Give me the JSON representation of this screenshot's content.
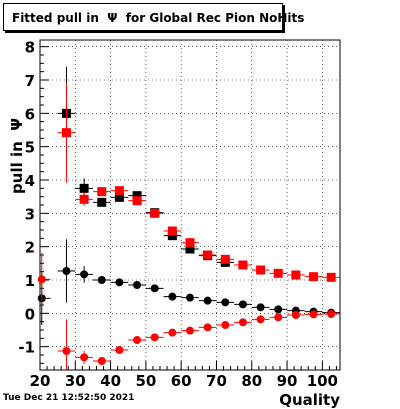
{
  "title": "Fitted pull in  Ψ  for Global Rec Pion NoHits",
  "timestamp": "Tue Dec 21 12:52:50 2021",
  "chart_data": {
    "type": "scatter",
    "title": "Fitted pull in  Ψ  for Global Rec Pion NoHits",
    "xlabel": "Quality",
    "ylabel": "pull in  Ψ",
    "xlim": [
      20,
      105
    ],
    "ylim": [
      -1.7,
      8.2
    ],
    "xticks": [
      20,
      30,
      40,
      50,
      60,
      70,
      80,
      90,
      100
    ],
    "yticks": [
      -1,
      0,
      1,
      2,
      3,
      4,
      5,
      6,
      7,
      8
    ],
    "grid": true,
    "series": [
      {
        "marker": "square",
        "color": "#000000",
        "points": [
          {
            "x": 27.5,
            "y": 6.0,
            "err": 1.4
          },
          {
            "x": 32.5,
            "y": 3.75,
            "err": 0.3
          },
          {
            "x": 37.5,
            "y": 3.33,
            "err": 0.12
          },
          {
            "x": 42.5,
            "y": 3.48,
            "err": 0.1
          },
          {
            "x": 47.5,
            "y": 3.53,
            "err": 0.1
          },
          {
            "x": 52.5,
            "y": 3.02,
            "err": 0.08
          },
          {
            "x": 57.5,
            "y": 2.33,
            "err": 0.06
          },
          {
            "x": 62.5,
            "y": 1.93,
            "err": 0.05
          },
          {
            "x": 67.5,
            "y": 1.73,
            "err": 0.05
          },
          {
            "x": 72.5,
            "y": 1.53,
            "err": 0.05
          },
          {
            "x": 77.5,
            "y": 1.45,
            "err": 0.05
          }
        ]
      },
      {
        "marker": "square",
        "color": "#ff0000",
        "points": [
          {
            "x": 27.5,
            "y": 5.42,
            "err": 1.5
          },
          {
            "x": 32.5,
            "y": 3.42,
            "err": 0.2
          },
          {
            "x": 37.5,
            "y": 3.65,
            "err": 0.12
          },
          {
            "x": 42.5,
            "y": 3.68,
            "err": 0.1
          },
          {
            "x": 47.5,
            "y": 3.38,
            "err": 0.1
          },
          {
            "x": 52.5,
            "y": 3.0,
            "err": 0.08
          },
          {
            "x": 57.5,
            "y": 2.47,
            "err": 0.06
          },
          {
            "x": 62.5,
            "y": 2.12,
            "err": 0.05
          },
          {
            "x": 67.5,
            "y": 1.75,
            "err": 0.05
          },
          {
            "x": 72.5,
            "y": 1.62,
            "err": 0.05
          },
          {
            "x": 77.5,
            "y": 1.45,
            "err": 0.05
          },
          {
            "x": 82.5,
            "y": 1.3,
            "err": 0.05
          },
          {
            "x": 87.5,
            "y": 1.2,
            "err": 0.05
          },
          {
            "x": 92.5,
            "y": 1.15,
            "err": 0.05
          },
          {
            "x": 97.5,
            "y": 1.1,
            "err": 0.05
          },
          {
            "x": 102.5,
            "y": 1.08,
            "err": 0.05
          }
        ]
      },
      {
        "marker": "circle",
        "color": "#000000",
        "points": [
          {
            "x": 20.5,
            "y": 0.45,
            "err": 0.8
          },
          {
            "x": 27.5,
            "y": 1.27,
            "err": 0.95
          },
          {
            "x": 32.5,
            "y": 1.17,
            "err": 0.25
          },
          {
            "x": 37.5,
            "y": 1.0,
            "err": 0.1
          },
          {
            "x": 42.5,
            "y": 0.93,
            "err": 0.08
          },
          {
            "x": 47.5,
            "y": 0.85,
            "err": 0.07
          },
          {
            "x": 52.5,
            "y": 0.75,
            "err": 0.06
          },
          {
            "x": 57.5,
            "y": 0.5,
            "err": 0.05
          },
          {
            "x": 62.5,
            "y": 0.47,
            "err": 0.05
          },
          {
            "x": 67.5,
            "y": 0.38,
            "err": 0.05
          },
          {
            "x": 72.5,
            "y": 0.33,
            "err": 0.05
          },
          {
            "x": 77.5,
            "y": 0.27,
            "err": 0.05
          },
          {
            "x": 82.5,
            "y": 0.18,
            "err": 0.05
          },
          {
            "x": 87.5,
            "y": 0.12,
            "err": 0.05
          },
          {
            "x": 92.5,
            "y": 0.08,
            "err": 0.05
          },
          {
            "x": 97.5,
            "y": 0.05,
            "err": 0.05
          },
          {
            "x": 102.5,
            "y": 0.02,
            "err": 0.05
          }
        ]
      },
      {
        "marker": "circle",
        "color": "#ff0000",
        "points": [
          {
            "x": 20.5,
            "y": 1.02,
            "err": 0.8
          },
          {
            "x": 27.5,
            "y": -1.13,
            "err": 0.95
          },
          {
            "x": 32.5,
            "y": -1.32,
            "err": 0.2
          },
          {
            "x": 37.5,
            "y": -1.43,
            "err": 0.1
          },
          {
            "x": 42.5,
            "y": -1.1,
            "err": 0.08
          },
          {
            "x": 47.5,
            "y": -0.8,
            "err": 0.07
          },
          {
            "x": 52.5,
            "y": -0.72,
            "err": 0.06
          },
          {
            "x": 57.5,
            "y": -0.58,
            "err": 0.05
          },
          {
            "x": 62.5,
            "y": -0.52,
            "err": 0.05
          },
          {
            "x": 67.5,
            "y": -0.42,
            "err": 0.05
          },
          {
            "x": 72.5,
            "y": -0.35,
            "err": 0.05
          },
          {
            "x": 77.5,
            "y": -0.27,
            "err": 0.05
          },
          {
            "x": 82.5,
            "y": -0.18,
            "err": 0.05
          },
          {
            "x": 87.5,
            "y": -0.12,
            "err": 0.05
          },
          {
            "x": 92.5,
            "y": -0.05,
            "err": 0.05
          },
          {
            "x": 97.5,
            "y": -0.03,
            "err": 0.05
          },
          {
            "x": 102.5,
            "y": -0.02,
            "err": 0.05
          }
        ]
      }
    ]
  }
}
